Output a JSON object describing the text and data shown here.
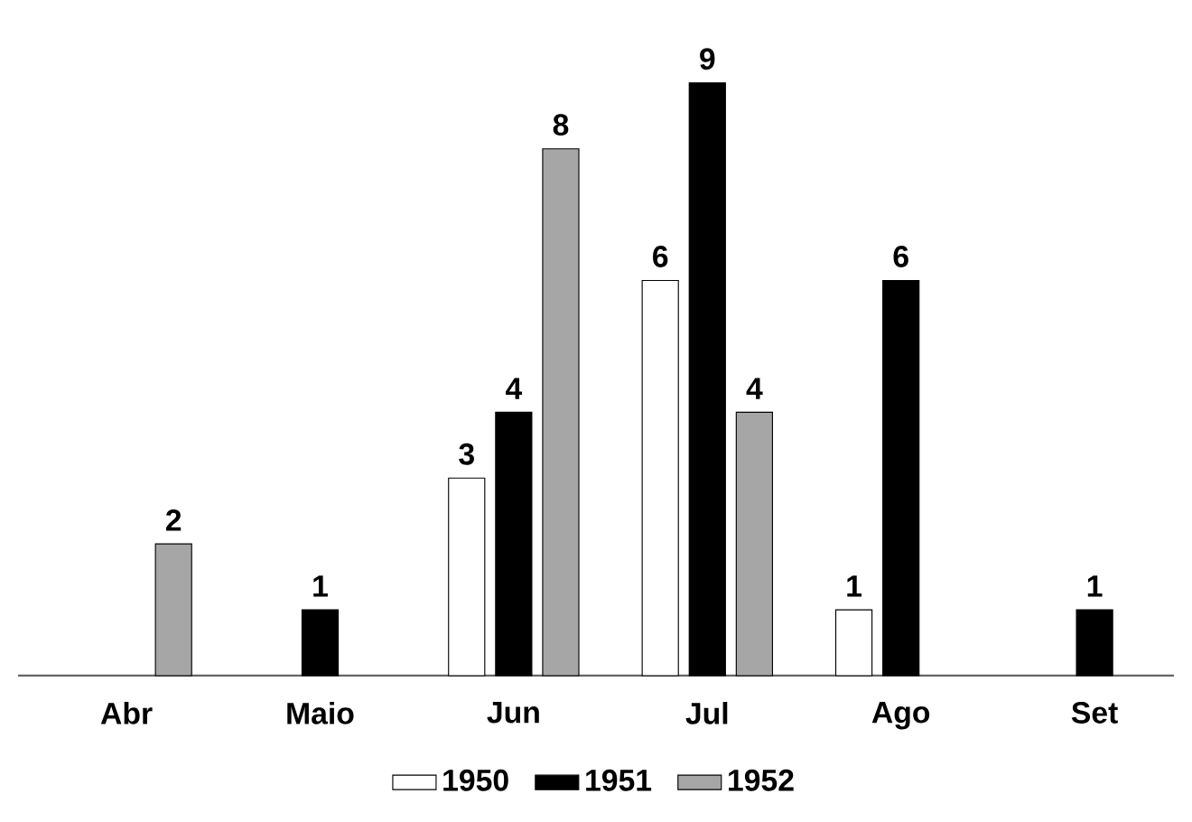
{
  "chart_data": {
    "type": "bar",
    "categories": [
      "Abr",
      "Maio",
      "Jun",
      "Jul",
      "Ago",
      "Set"
    ],
    "series": [
      {
        "name": "1950",
        "color": "#ffffff",
        "values": [
          null,
          null,
          3,
          6,
          1,
          null
        ]
      },
      {
        "name": "1951",
        "color": "#000000",
        "values": [
          null,
          1,
          4,
          9,
          6,
          1
        ]
      },
      {
        "name": "1952",
        "color": "#a6a6a6",
        "values": [
          2,
          null,
          8,
          4,
          null,
          null
        ]
      }
    ],
    "data_labels": true,
    "legend": "bottom"
  }
}
